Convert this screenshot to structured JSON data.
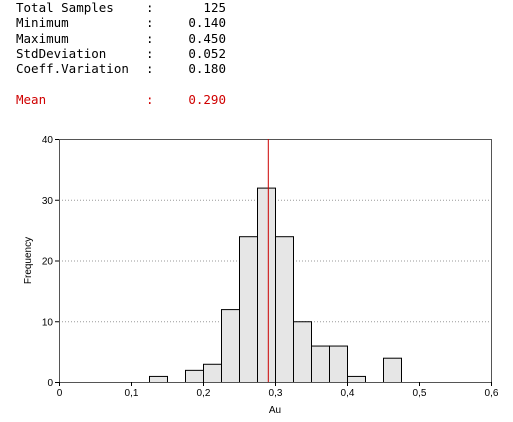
{
  "stats": [
    {
      "label": "Total Samples",
      "sep": ":",
      "value": "125"
    },
    {
      "label": "Minimum",
      "sep": ":",
      "value": "0.140"
    },
    {
      "label": "Maximum",
      "sep": ":",
      "value": "0.450"
    },
    {
      "label": "StdDeviation",
      "sep": ":",
      "value": "0.052"
    },
    {
      "label": "Coeff.Variation",
      "sep": ":",
      "value": "0.180"
    }
  ],
  "mean": {
    "label": "Mean",
    "sep": ":",
    "value": "0.290"
  },
  "colors": {
    "mean": "#cc0000",
    "bar_fill": "#e6e6e6",
    "bar_edge": "#000000"
  },
  "chart_data": {
    "type": "bar",
    "xlabel": "Au",
    "ylabel": "Frequency",
    "xlim": [
      0,
      0.6
    ],
    "ylim": [
      0,
      40
    ],
    "xticks": [
      0,
      0.1,
      0.2,
      0.3,
      0.4,
      0.5,
      0.6
    ],
    "xtick_labels": [
      "0",
      "0,1",
      "0,2",
      "0,3",
      "0,4",
      "0,5",
      "0,6"
    ],
    "yticks": [
      0,
      10,
      20,
      30,
      40
    ],
    "ytick_labels": [
      "0",
      "10",
      "20",
      "30",
      "40"
    ],
    "grid": true,
    "bin_width": 0.025,
    "bins": [
      {
        "start": 0.125,
        "count": 1
      },
      {
        "start": 0.175,
        "count": 2
      },
      {
        "start": 0.2,
        "count": 3
      },
      {
        "start": 0.225,
        "count": 12
      },
      {
        "start": 0.25,
        "count": 24
      },
      {
        "start": 0.275,
        "count": 32
      },
      {
        "start": 0.3,
        "count": 24
      },
      {
        "start": 0.325,
        "count": 10
      },
      {
        "start": 0.35,
        "count": 6
      },
      {
        "start": 0.375,
        "count": 6
      },
      {
        "start": 0.4,
        "count": 1
      },
      {
        "start": 0.45,
        "count": 4
      }
    ],
    "mean_line": 0.29
  }
}
